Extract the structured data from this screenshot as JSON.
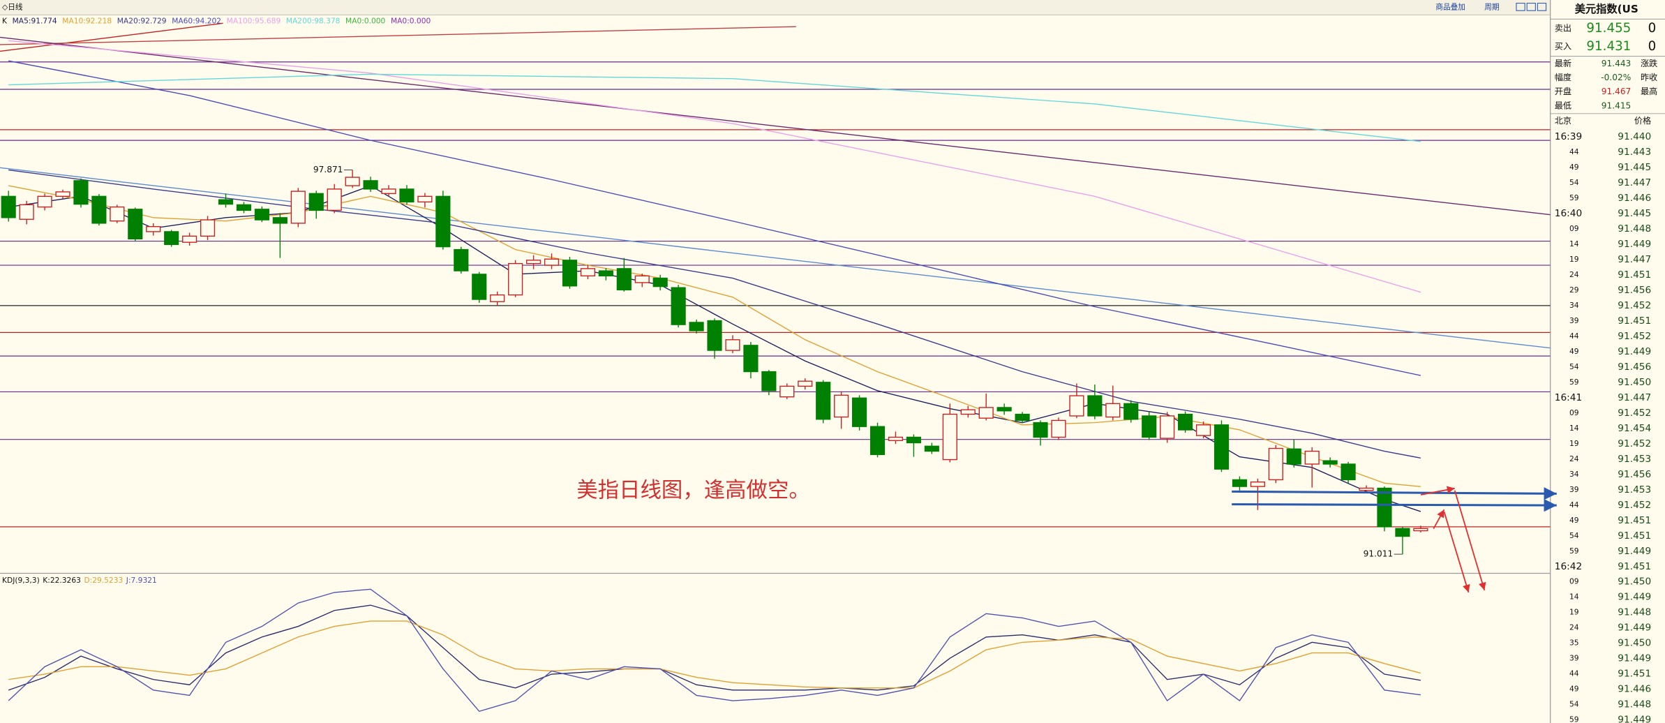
{
  "toolbar": {
    "period": "◇日线",
    "overlay": "商品叠加",
    "cycle": "周期"
  },
  "chart_data": [
    {
      "type": "candlestick",
      "legend_title": "K",
      "ylim": [
        90.67,
        100.64
      ],
      "xlim": [
        -0.47,
        85.2
      ],
      "up_color": "#c82020",
      "down_color": "#008000",
      "open": [
        97.4,
        96.99,
        97.21,
        97.4,
        97.68,
        97.4,
        96.96,
        97.17,
        96.77,
        96.77,
        96.58,
        96.69,
        97.34,
        97.25,
        97.17,
        97.02,
        96.92,
        97.45,
        97.15,
        97.59,
        97.68,
        97.45,
        97.53,
        97.3,
        97.4,
        96.45,
        96.01,
        95.52,
        95.64,
        96.2,
        96.17,
        96.26,
        95.98,
        96.07,
        96.11,
        95.86,
        95.94,
        95.77,
        95.15,
        95.18,
        94.65,
        94.74,
        94.27,
        93.82,
        94.01,
        94.08,
        93.46,
        93.8,
        93.29,
        93.04,
        93.1,
        92.94,
        92.7,
        93.51,
        93.44,
        93.63,
        93.51,
        93.36,
        93.1,
        93.48,
        93.84,
        93.46,
        93.7,
        93.48,
        93.08,
        93.51,
        93.13,
        93.32,
        92.34,
        92.22,
        92.34,
        92.89,
        92.62,
        92.68,
        92.62,
        92.15,
        92.19,
        91.47,
        91.43
      ],
      "high": [
        97.5,
        97.32,
        97.45,
        97.52,
        97.72,
        97.44,
        97.25,
        97.2,
        96.92,
        96.8,
        96.75,
        97.05,
        97.45,
        97.3,
        97.22,
        97.1,
        97.55,
        97.5,
        97.62,
        97.871,
        97.75,
        97.6,
        97.6,
        97.46,
        97.5,
        96.5,
        96.05,
        95.7,
        96.26,
        96.35,
        96.38,
        96.32,
        96.18,
        96.12,
        96.3,
        96.02,
        96.0,
        95.82,
        95.2,
        95.22,
        94.92,
        94.8,
        94.3,
        94.06,
        94.15,
        94.12,
        93.92,
        93.85,
        93.36,
        93.2,
        93.15,
        93.0,
        93.7,
        93.66,
        93.88,
        93.7,
        93.55,
        93.4,
        93.45,
        94.06,
        94.04,
        94.02,
        93.76,
        93.55,
        93.55,
        93.56,
        93.38,
        93.4,
        92.4,
        92.36,
        92.96,
        93.06,
        92.92,
        92.74,
        92.66,
        92.24,
        92.22,
        91.5,
        91.52
      ],
      "low": [
        96.95,
        96.9,
        97.15,
        97.36,
        97.2,
        96.88,
        96.92,
        96.6,
        96.7,
        96.5,
        96.52,
        96.62,
        97.2,
        97.1,
        96.94,
        96.3,
        96.85,
        97.0,
        97.1,
        97.55,
        97.48,
        97.4,
        97.25,
        97.2,
        96.45,
        96.02,
        95.5,
        95.45,
        95.6,
        96.1,
        96.1,
        95.75,
        95.92,
        95.9,
        95.7,
        95.78,
        95.72,
        95.06,
        94.95,
        94.5,
        94.6,
        94.15,
        93.85,
        93.78,
        93.95,
        93.35,
        93.25,
        93.22,
        92.74,
        92.98,
        92.75,
        92.8,
        92.65,
        93.45,
        93.4,
        93.5,
        93.35,
        92.95,
        93.05,
        93.44,
        93.42,
        93.4,
        93.36,
        93.05,
        93.0,
        93.18,
        93.08,
        92.48,
        92.15,
        91.8,
        92.28,
        92.56,
        92.2,
        92.56,
        92.28,
        92.1,
        91.42,
        91.011,
        91.4
      ],
      "close": [
        97.02,
        97.25,
        97.4,
        97.48,
        97.26,
        96.92,
        97.21,
        96.64,
        96.86,
        96.54,
        96.69,
        96.98,
        97.26,
        97.15,
        96.98,
        96.92,
        97.49,
        97.15,
        97.53,
        97.74,
        97.53,
        97.53,
        97.3,
        97.4,
        96.5,
        96.07,
        95.56,
        95.64,
        96.2,
        96.26,
        96.28,
        95.8,
        96.11,
        95.98,
        95.73,
        95.98,
        95.79,
        95.11,
        95.0,
        94.65,
        94.84,
        94.27,
        93.93,
        94.01,
        94.1,
        93.42,
        93.85,
        93.29,
        92.79,
        93.1,
        93.0,
        92.85,
        93.51,
        93.59,
        93.63,
        93.57,
        93.4,
        93.1,
        93.4,
        93.84,
        93.48,
        93.7,
        93.42,
        93.1,
        93.48,
        93.23,
        93.32,
        92.53,
        92.22,
        92.3,
        92.9,
        92.62,
        92.85,
        92.62,
        92.34,
        92.19,
        91.5,
        91.33,
        91.47
      ],
      "series": [
        {
          "name": "MA5:91.774",
          "color": "#1c1c5c",
          "x": [
            0,
            4,
            8,
            12,
            16,
            20,
            24,
            28,
            32,
            36,
            40,
            44,
            48,
            52,
            56,
            60,
            64,
            68,
            72,
            76,
            78
          ],
          "values": [
            97.21,
            97.4,
            96.83,
            97.02,
            97.11,
            97.59,
            96.83,
            96.01,
            96.07,
            95.82,
            95.12,
            94.46,
            93.93,
            93.61,
            93.36,
            93.7,
            93.51,
            92.75,
            92.56,
            91.99,
            91.774
          ]
        },
        {
          "name": "MA10:92.218",
          "color": "#e0a030",
          "x": [
            0,
            4,
            8,
            12,
            16,
            20,
            24,
            28,
            32,
            36,
            40,
            44,
            48,
            52,
            56,
            60,
            64,
            68,
            72,
            76,
            78
          ],
          "values": [
            97.59,
            97.34,
            97.02,
            96.96,
            97.11,
            97.4,
            97.11,
            96.45,
            96.17,
            95.94,
            95.6,
            94.84,
            94.27,
            93.8,
            93.32,
            93.36,
            93.47,
            93.23,
            92.75,
            92.28,
            92.218
          ]
        },
        {
          "name": "MA20:92.729",
          "color": "#3a3a8c",
          "x": [
            0,
            8,
            16,
            24,
            32,
            40,
            48,
            56,
            62,
            68,
            72,
            76,
            78
          ],
          "values": [
            97.87,
            97.53,
            97.21,
            96.92,
            96.39,
            95.94,
            95.12,
            94.27,
            93.74,
            93.42,
            93.17,
            92.85,
            92.729
          ]
        },
        {
          "name": "MA60:94.202",
          "color": "#4a4ab8",
          "x": [
            0,
            10,
            20,
            30,
            40,
            50,
            60,
            70,
            78
          ],
          "values": [
            99.82,
            99.2,
            98.4,
            97.7,
            96.96,
            96.2,
            95.43,
            94.75,
            94.202
          ]
        },
        {
          "name": "MA100:95.689",
          "color": "#e8a0e8",
          "x": [
            0,
            20,
            40,
            60,
            78
          ],
          "values": [
            100.18,
            99.6,
            98.7,
            97.4,
            95.689
          ]
        },
        {
          "name": "MA200:98.378",
          "color": "#60d8d8",
          "x": [
            0,
            20,
            40,
            60,
            78
          ],
          "values": [
            99.39,
            99.58,
            99.5,
            99.05,
            98.378
          ]
        },
        {
          "name": "MA0:0.000",
          "color": "#3cb43c",
          "x": [],
          "values": []
        },
        {
          "name": "MA0:0.000",
          "color": "#8c2cb4",
          "x": [],
          "values": []
        }
      ],
      "trendlines": [
        {
          "color": "#c02020",
          "x": [
            -0.47,
            11.85
          ],
          "values": [
            99.99,
            100.49
          ]
        },
        {
          "color": "#c04040",
          "x": [
            -0.47,
            43.5
          ],
          "values": [
            100.11,
            100.43
          ]
        },
        {
          "color": "#6a2a6a",
          "x": [
            -0.47,
            85.2
          ],
          "values": [
            100.24,
            97.07
          ]
        },
        {
          "color": "#5a8ad0",
          "x": [
            -0.47,
            85.2
          ],
          "values": [
            97.91,
            94.69
          ]
        }
      ],
      "levels": [
        {
          "value": 99.8,
          "color": "#6a2a8a"
        },
        {
          "value": 99.31,
          "color": "#6a2a8a"
        },
        {
          "value": 98.59,
          "color": "#c02020"
        },
        {
          "value": 98.4,
          "color": "#6a2a8a"
        },
        {
          "value": 96.6,
          "color": "#6a2a8a"
        },
        {
          "value": 96.17,
          "color": "#6a2a8a"
        },
        {
          "value": 95.45,
          "color": "#222222"
        },
        {
          "value": 94.97,
          "color": "#c02020"
        },
        {
          "value": 94.55,
          "color": "#6a2a8a"
        },
        {
          "value": 93.91,
          "color": "#6a2a8a"
        },
        {
          "value": 93.06,
          "color": "#6a2a8a"
        },
        {
          "value": 91.5,
          "color": "#c02020"
        }
      ],
      "note": "美指日线图，逢高做空。",
      "note_color": "#d03030"
    },
    {
      "type": "line",
      "title": "KDJ(9,3,3)",
      "ylim": [
        -20,
        120
      ],
      "xlim": [
        -0.47,
        85.2
      ],
      "x": [
        0,
        2,
        4,
        6,
        8,
        10,
        12,
        14,
        16,
        18,
        20,
        22,
        24,
        26,
        28,
        30,
        32,
        34,
        36,
        38,
        40,
        42,
        44,
        46,
        48,
        50,
        52,
        54,
        56,
        58,
        60,
        62,
        64,
        66,
        68,
        70,
        72,
        74,
        76,
        78
      ],
      "series": [
        {
          "name": "K:22.3263",
          "color": "#2a2a6a",
          "values": [
            12.6,
            25.3,
            46.3,
            33.7,
            23.2,
            17.9,
            49.5,
            65.3,
            75.8,
            91.6,
            96.8,
            86.3,
            54.7,
            23.2,
            14.7,
            28.4,
            30.5,
            33.7,
            33.7,
            17.9,
            12.6,
            12.6,
            12.6,
            14.7,
            12.6,
            16.8,
            44.2,
            65.3,
            67.4,
            62.1,
            67.4,
            60,
            23.2,
            28.4,
            17.9,
            44.2,
            60,
            54.7,
            28.4,
            22.3263
          ]
        },
        {
          "name": "D:29.5233",
          "color": "#e0a030",
          "values": [
            23.2,
            28.4,
            35.8,
            35.8,
            31.6,
            27.4,
            33.7,
            49.5,
            65.3,
            75.8,
            81,
            81,
            67.4,
            46.3,
            33.7,
            31.6,
            33.7,
            33.7,
            33.7,
            25.3,
            20,
            17.9,
            15.8,
            14.7,
            14.7,
            14.7,
            31.6,
            52.6,
            60,
            62.1,
            65.3,
            63.2,
            46.3,
            38.9,
            31.6,
            38.9,
            49.5,
            49.5,
            38.9,
            29.5233
          ]
        },
        {
          "name": "J:7.9321",
          "color": "#5050b0",
          "values": [
            2.1,
            35.8,
            52.6,
            35.8,
            12.6,
            7.4,
            60,
            75.8,
            99,
            109.5,
            112.6,
            86.3,
            33.7,
            -8.4,
            2.1,
            31.6,
            23.2,
            35.8,
            33.7,
            7.4,
            2.1,
            4.2,
            7.4,
            12.6,
            7.4,
            14.7,
            65.3,
            88.4,
            84.2,
            75.8,
            81,
            60,
            2.1,
            28.4,
            2.1,
            54.7,
            67.4,
            60,
            12.6,
            7.9321
          ]
        }
      ]
    }
  ],
  "quote": {
    "title": "美元指数(US",
    "rows": [
      [
        "卖出",
        "91.455",
        "0"
      ],
      [
        "买入",
        "91.431",
        "0"
      ],
      [
        "最新",
        "91.443",
        "涨跌"
      ],
      [
        "幅度",
        "-0.02%",
        "昨收"
      ],
      [
        "开盘",
        "91.467",
        "最高"
      ],
      [
        "最低",
        "91.415"
      ]
    ]
  },
  "ticks_table": {
    "header": [
      "北京",
      "价格"
    ],
    "rows": [
      [
        "16:39",
        "91.440"
      ],
      [
        "44",
        "91.443"
      ],
      [
        "49",
        "91.445"
      ],
      [
        "54",
        "91.447"
      ],
      [
        "59",
        "91.446"
      ],
      [
        "16:40",
        "91.445"
      ],
      [
        "09",
        "91.448"
      ],
      [
        "14",
        "91.449"
      ],
      [
        "19",
        "91.447"
      ],
      [
        "24",
        "91.451"
      ],
      [
        "29",
        "91.456"
      ],
      [
        "34",
        "91.452"
      ],
      [
        "39",
        "91.451"
      ],
      [
        "44",
        "91.452"
      ],
      [
        "49",
        "91.449"
      ],
      [
        "54",
        "91.456"
      ],
      [
        "59",
        "91.450"
      ],
      [
        "16:41",
        "91.447"
      ],
      [
        "09",
        "91.452"
      ],
      [
        "14",
        "91.454"
      ],
      [
        "19",
        "91.452"
      ],
      [
        "24",
        "91.453"
      ],
      [
        "34",
        "91.456"
      ],
      [
        "39",
        "91.453"
      ],
      [
        "44",
        "91.452"
      ],
      [
        "49",
        "91.451"
      ],
      [
        "54",
        "91.451"
      ],
      [
        "59",
        "91.449"
      ],
      [
        "16:42",
        "91.451"
      ],
      [
        "09",
        "91.450"
      ],
      [
        "14",
        "91.449"
      ],
      [
        "19",
        "91.448"
      ],
      [
        "24",
        "91.449"
      ],
      [
        "35",
        "91.450"
      ],
      [
        "39",
        "91.449"
      ],
      [
        "44",
        "91.451"
      ],
      [
        "49",
        "91.446"
      ],
      [
        "54",
        "91.448"
      ],
      [
        "59",
        "91.449"
      ]
    ]
  }
}
